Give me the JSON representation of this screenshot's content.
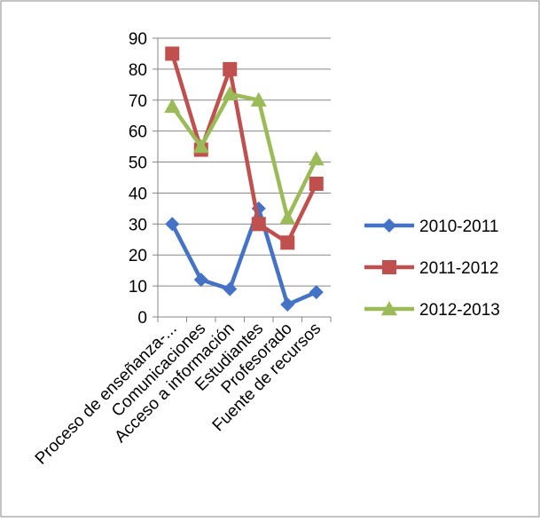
{
  "chart_data": {
    "type": "line",
    "categories": [
      "Proceso de enseñanza-...",
      "Comunicaciones",
      "Acceso a información",
      "Estudiantes",
      "Profesorado",
      "Fuente de recursos"
    ],
    "series": [
      {
        "name": "2010-2011",
        "values": [
          30,
          12,
          9,
          35,
          4,
          8
        ],
        "color": "#4472C4",
        "marker": "diamond"
      },
      {
        "name": "2011-2012",
        "values": [
          85,
          54,
          80,
          30,
          24,
          43
        ],
        "color": "#C0504D",
        "marker": "square"
      },
      {
        "name": "2012-2013",
        "values": [
          68,
          55,
          72,
          70,
          32,
          51
        ],
        "color": "#9BBB59",
        "marker": "triangle"
      }
    ],
    "ylim": [
      0,
      90
    ],
    "yticks": [
      "0",
      "10",
      "20",
      "30",
      "40",
      "50",
      "60",
      "70",
      "80",
      "90"
    ],
    "grid": true,
    "legend": "right",
    "title": "",
    "xlabel": "",
    "ylabel": ""
  }
}
